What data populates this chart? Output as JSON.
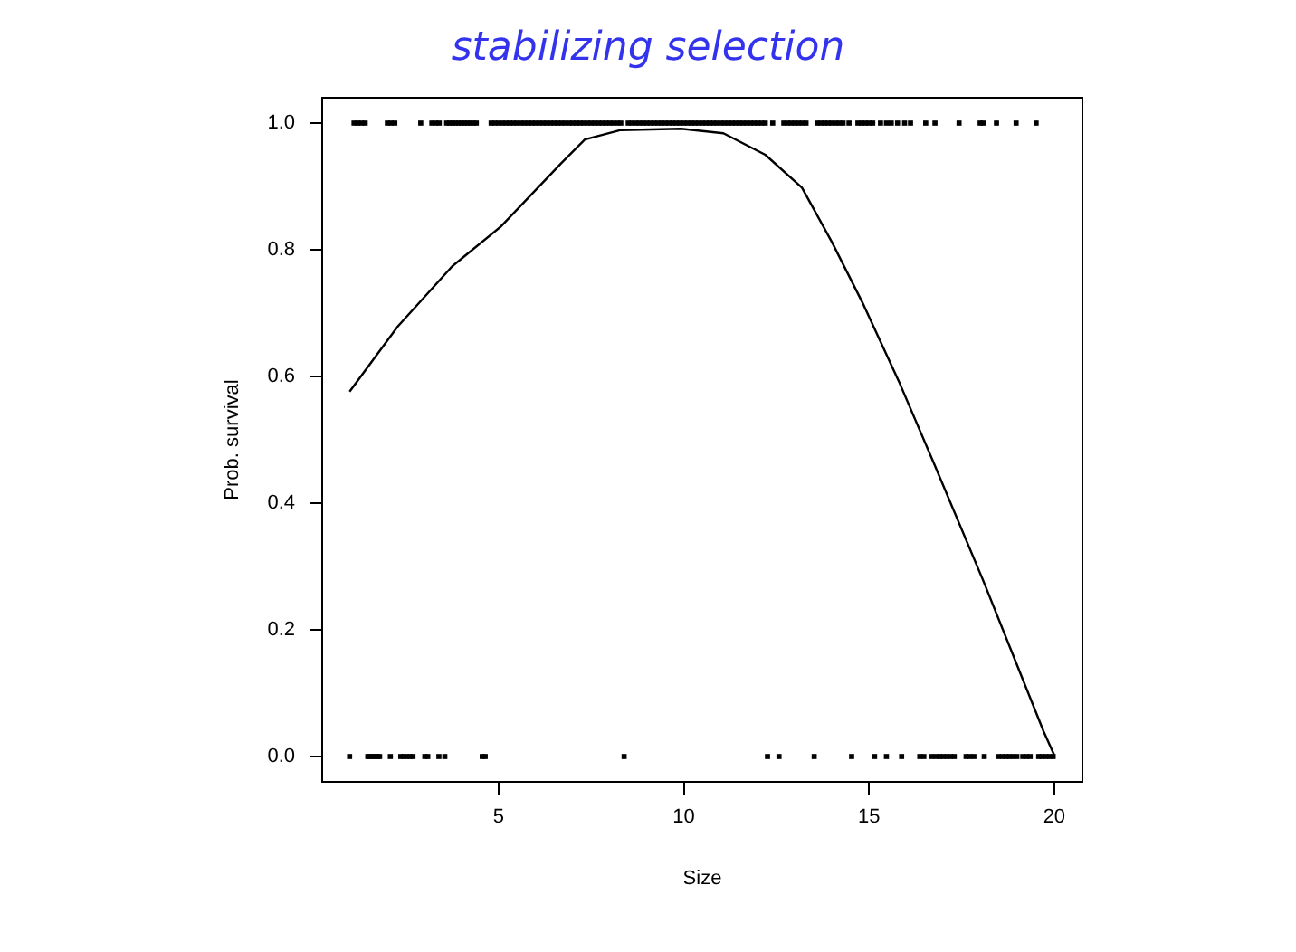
{
  "chart_data": {
    "type": "scatter",
    "title": "stabilizing selection",
    "xlabel": "Size",
    "ylabel": "Prob. survival",
    "xlim": [
      0.24,
      20.76
    ],
    "ylim": [
      -0.04,
      1.04
    ],
    "xticks": [
      5,
      10,
      15,
      20
    ],
    "yticks": [
      {
        "value": 0,
        "label": "0.0"
      },
      {
        "value": 0.2,
        "label": "0.2"
      },
      {
        "value": 0.4,
        "label": "0.4"
      },
      {
        "value": 0.6,
        "label": "0.6"
      },
      {
        "value": 0.8,
        "label": "0.8"
      },
      {
        "value": 1,
        "label": "1.0"
      }
    ],
    "series": [
      {
        "type": "line",
        "color": "#000000",
        "x": [
          0.98,
          2.28,
          3.75,
          5.05,
          6.68,
          7.33,
          8.3,
          9.93,
          11.07,
          12.2,
          13.19,
          14.0,
          14.82,
          15.8,
          16.78,
          18.08,
          19.06,
          19.71,
          20.0
        ],
        "values": [
          0.576,
          0.679,
          0.774,
          0.836,
          0.936,
          0.974,
          0.989,
          0.991,
          0.984,
          0.95,
          0.898,
          0.812,
          0.717,
          0.593,
          0.459,
          0.278,
          0.135,
          0.04,
          0.002
        ]
      },
      {
        "type": "scatter",
        "color": "#000000",
        "x": [
          0.98,
          1.47,
          1.53,
          1.6,
          1.66,
          1.73,
          1.79,
          2.08,
          2.36,
          2.44,
          2.52,
          2.61,
          2.69,
          3.01,
          3.09,
          3.39,
          3.55,
          4.56,
          4.64,
          8.39,
          12.26,
          12.57,
          13.52,
          14.53,
          15.15,
          15.47,
          15.88,
          16.37,
          16.48,
          16.69,
          16.81,
          16.91,
          17.0,
          17.1,
          17.2,
          17.3,
          17.62,
          17.72,
          17.83,
          18.11,
          18.49,
          18.6,
          18.7,
          18.79,
          18.89,
          18.99,
          19.15,
          19.25,
          19.35,
          19.58,
          19.67,
          19.77,
          19.87,
          19.97
        ],
        "values": [
          0,
          0,
          0,
          0,
          0,
          0,
          0,
          0,
          0,
          0,
          0,
          0,
          0,
          0,
          0,
          0,
          0,
          0,
          0,
          0,
          0,
          0,
          0,
          0,
          0,
          0,
          0,
          0,
          0,
          0,
          0,
          0,
          0,
          0,
          0,
          0,
          0,
          0,
          0,
          0,
          0,
          0,
          0,
          0,
          0,
          0,
          0,
          0,
          0,
          0,
          0,
          0,
          0,
          0
        ]
      },
      {
        "type": "scatter",
        "color": "#000000",
        "x": [
          1.1,
          1.2,
          1.3,
          1.4,
          2.0,
          2.1,
          2.2,
          2.9,
          3.2,
          3.3,
          3.4,
          3.6,
          3.68,
          3.76,
          3.84,
          3.92,
          4.0,
          4.08,
          4.16,
          4.24,
          4.32,
          4.4,
          4.8,
          4.9,
          5.0,
          5.1,
          5.2,
          5.3,
          5.4,
          5.5,
          5.6,
          5.7,
          5.8,
          5.9,
          6.0,
          6.1,
          6.2,
          6.3,
          6.4,
          6.5,
          6.6,
          6.7,
          6.8,
          6.9,
          7.0,
          7.1,
          7.2,
          7.3,
          7.4,
          7.5,
          7.6,
          7.7,
          7.8,
          7.9,
          8.0,
          8.1,
          8.2,
          8.3,
          8.5,
          8.6,
          8.7,
          8.8,
          8.9,
          9.0,
          9.1,
          9.2,
          9.3,
          9.4,
          9.5,
          9.6,
          9.7,
          9.8,
          9.9,
          10.0,
          10.1,
          10.2,
          10.3,
          10.4,
          10.5,
          10.6,
          10.7,
          10.8,
          10.9,
          11.0,
          11.1,
          11.2,
          11.3,
          11.4,
          11.5,
          11.6,
          11.7,
          11.8,
          11.9,
          12.0,
          12.1,
          12.2,
          12.4,
          12.7,
          12.8,
          12.9,
          13.0,
          13.1,
          13.2,
          13.3,
          13.6,
          13.7,
          13.8,
          13.9,
          14.0,
          14.1,
          14.2,
          14.3,
          14.46,
          14.7,
          14.8,
          14.9,
          15.0,
          15.1,
          15.31,
          15.47,
          15.6,
          15.77,
          15.96,
          16.12,
          16.53,
          16.78,
          17.43,
          18.0,
          18.08,
          18.44,
          18.97,
          19.51
        ],
        "values": [
          1,
          1,
          1,
          1,
          1,
          1,
          1,
          1,
          1,
          1,
          1,
          1,
          1,
          1,
          1,
          1,
          1,
          1,
          1,
          1,
          1,
          1,
          1,
          1,
          1,
          1,
          1,
          1,
          1,
          1,
          1,
          1,
          1,
          1,
          1,
          1,
          1,
          1,
          1,
          1,
          1,
          1,
          1,
          1,
          1,
          1,
          1,
          1,
          1,
          1,
          1,
          1,
          1,
          1,
          1,
          1,
          1,
          1,
          1,
          1,
          1,
          1,
          1,
          1,
          1,
          1,
          1,
          1,
          1,
          1,
          1,
          1,
          1,
          1,
          1,
          1,
          1,
          1,
          1,
          1,
          1,
          1,
          1,
          1,
          1,
          1,
          1,
          1,
          1,
          1,
          1,
          1,
          1,
          1,
          1,
          1,
          1,
          1,
          1,
          1,
          1,
          1,
          1,
          1,
          1,
          1,
          1,
          1,
          1,
          1,
          1,
          1,
          1,
          1,
          1,
          1,
          1,
          1,
          1,
          1,
          1,
          1,
          1,
          1,
          1,
          1,
          1,
          1,
          1,
          1,
          1,
          1
        ]
      }
    ]
  }
}
